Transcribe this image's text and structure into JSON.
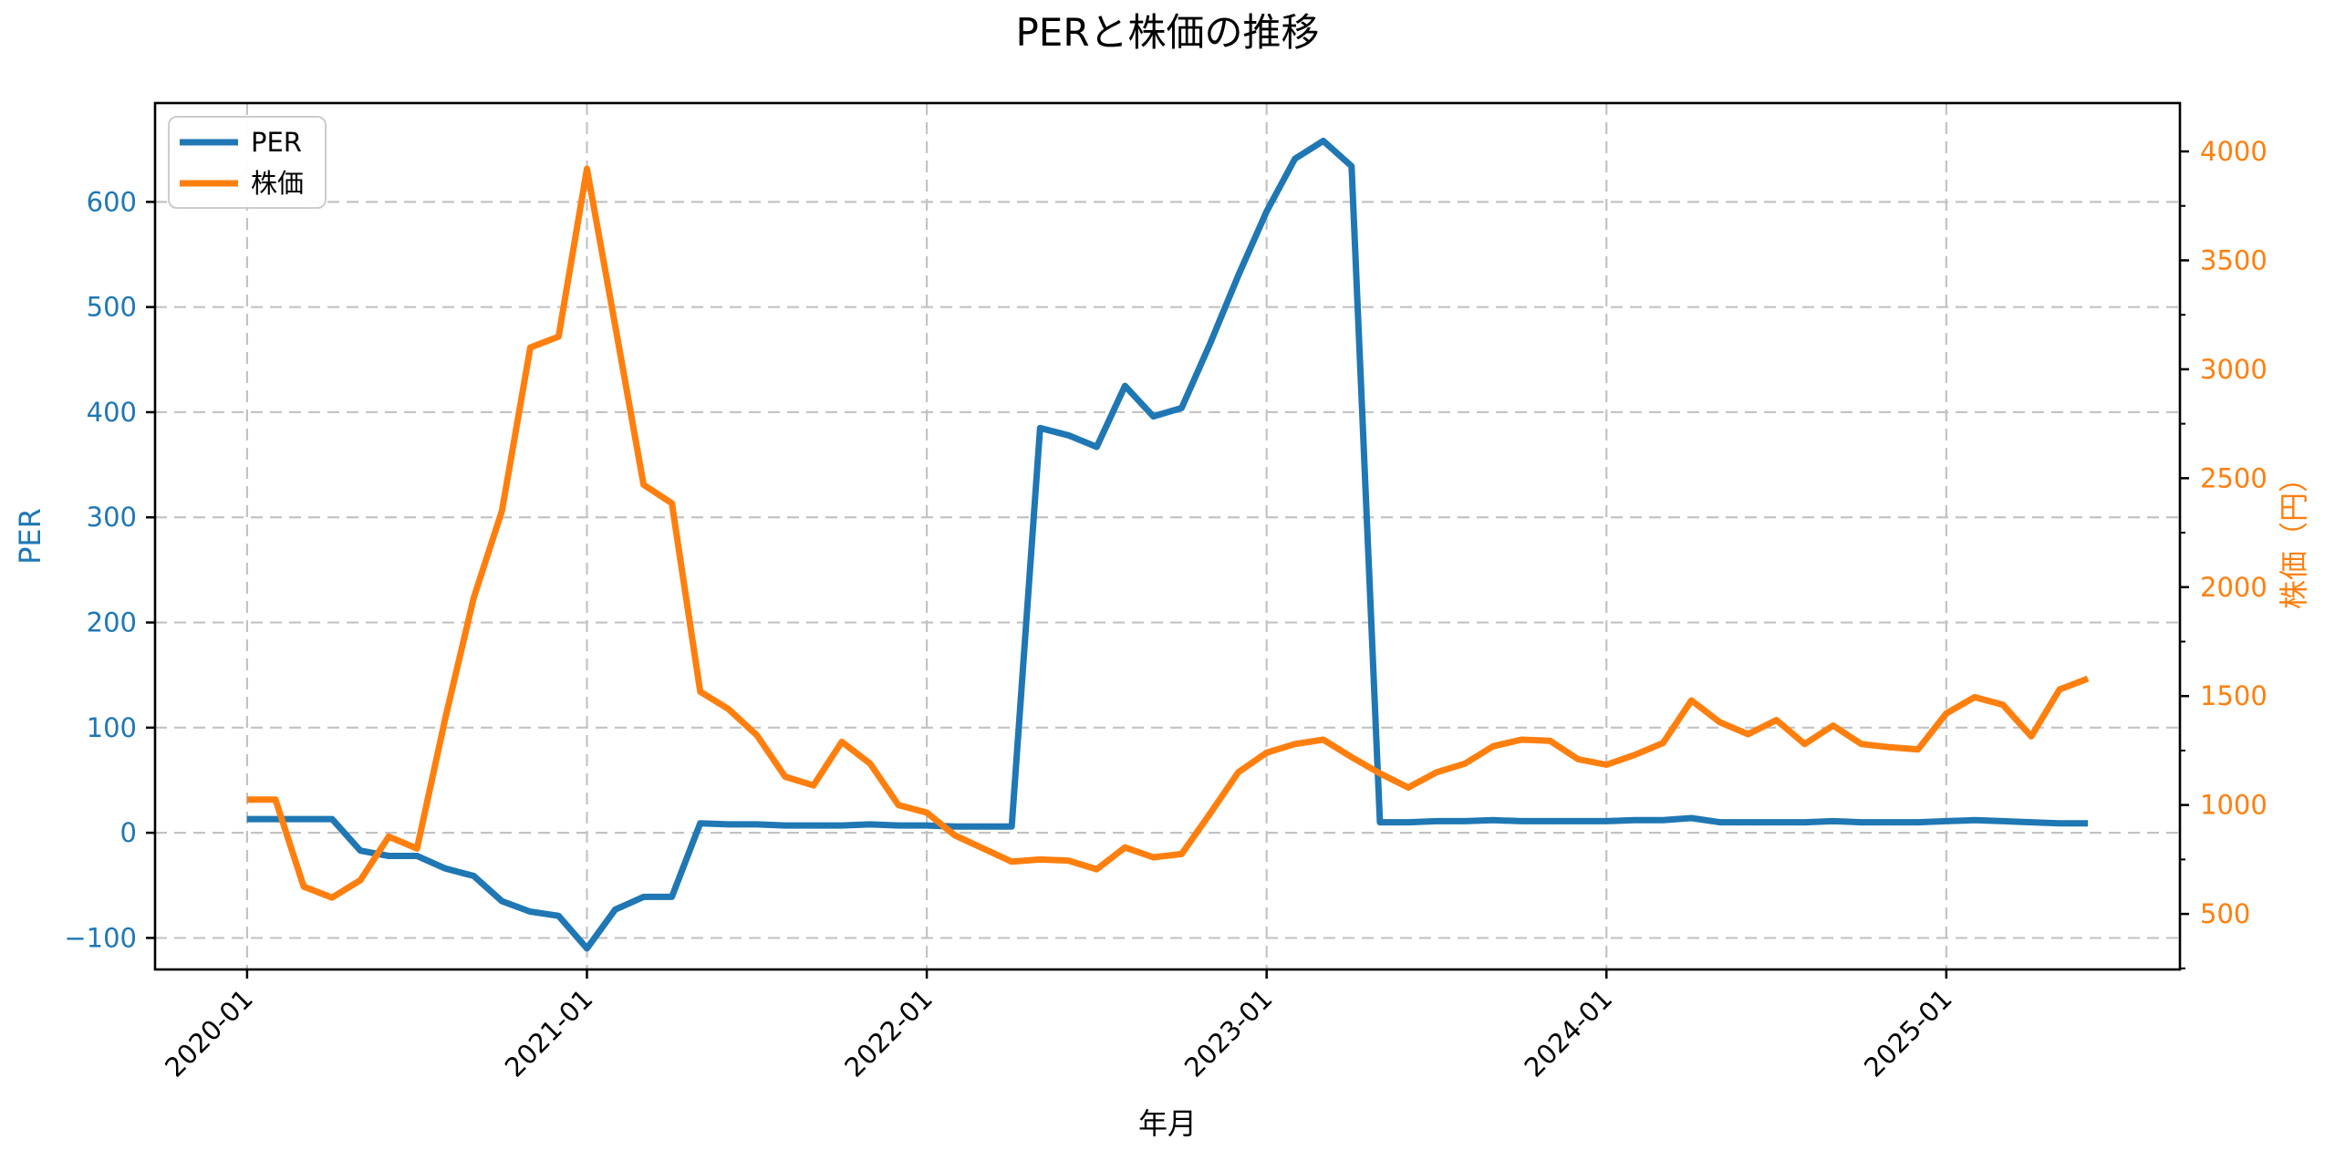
{
  "chart_data": {
    "type": "line",
    "title": "PERと株価の推移",
    "xlabel": "年月",
    "ylabel_left": "PER",
    "ylabel_right": "株価（円）",
    "legend": {
      "position": "upper left",
      "entries": [
        "PER",
        "株価"
      ]
    },
    "grid": {
      "horizontal": "left-axis-ticks",
      "vertical": "x-ticks",
      "style": "dashed",
      "color": "#c3c3c3"
    },
    "x": [
      "2020-01",
      "2020-02",
      "2020-03",
      "2020-04",
      "2020-05",
      "2020-06",
      "2020-07",
      "2020-08",
      "2020-09",
      "2020-10",
      "2020-11",
      "2020-12",
      "2021-01",
      "2021-02",
      "2021-03",
      "2021-04",
      "2021-05",
      "2021-06",
      "2021-07",
      "2021-08",
      "2021-09",
      "2021-10",
      "2021-11",
      "2021-12",
      "2022-01",
      "2022-02",
      "2022-03",
      "2022-04",
      "2022-05",
      "2022-06",
      "2022-07",
      "2022-08",
      "2022-09",
      "2022-10",
      "2022-11",
      "2022-12",
      "2023-01",
      "2023-02",
      "2023-03",
      "2023-04",
      "2023-05",
      "2023-06",
      "2023-07",
      "2023-08",
      "2023-09",
      "2023-10",
      "2023-11",
      "2023-12",
      "2024-01",
      "2024-02",
      "2024-03",
      "2024-04",
      "2024-05",
      "2024-06",
      "2024-07",
      "2024-08",
      "2024-09",
      "2024-10",
      "2024-11",
      "2024-12",
      "2025-01",
      "2025-02",
      "2025-03",
      "2025-04",
      "2025-05",
      "2025-06"
    ],
    "series": [
      {
        "name": "PER",
        "axis": "left",
        "color": "#1f77b4",
        "values": [
          13,
          13,
          13,
          13,
          -17,
          -22,
          -22,
          -34,
          -41,
          -65,
          -75,
          -79,
          -110,
          -73,
          -61,
          -61,
          9,
          8,
          8,
          7,
          7,
          7,
          8,
          7,
          7,
          6,
          6,
          6,
          385,
          378,
          367,
          425,
          396,
          404,
          465,
          530,
          591,
          641,
          658,
          634,
          10,
          10,
          11,
          11,
          12,
          11,
          11,
          11,
          11,
          12,
          12,
          14,
          10,
          10,
          10,
          10,
          11,
          10,
          10,
          10,
          11,
          12,
          11,
          10,
          9,
          9
        ]
      },
      {
        "name": "株価",
        "axis": "right",
        "color": "#ff7f0e",
        "values": [
          1025,
          1025,
          625,
          575,
          655,
          855,
          800,
          1400,
          1950,
          2350,
          3100,
          3150,
          3920,
          3200,
          2470,
          2385,
          1520,
          1440,
          1320,
          1130,
          1090,
          1290,
          1190,
          1000,
          965,
          860,
          800,
          740,
          750,
          745,
          705,
          805,
          760,
          775,
          960,
          1150,
          1240,
          1280,
          1300,
          1220,
          1145,
          1080,
          1150,
          1190,
          1270,
          1300,
          1295,
          1210,
          1185,
          1230,
          1285,
          1480,
          1380,
          1325,
          1390,
          1280,
          1365,
          1280,
          1265,
          1255,
          1420,
          1495,
          1460,
          1315,
          1530,
          1580
        ]
      }
    ],
    "x_tick_positions": [
      0,
      12,
      24,
      36,
      48,
      60
    ],
    "x_tick_labels": [
      "2020-01",
      "2021-01",
      "2022-01",
      "2023-01",
      "2024-01",
      "2025-01"
    ],
    "x_range": [
      -3.25,
      68.25
    ],
    "y_left": {
      "ticks": [
        -100,
        0,
        100,
        200,
        300,
        400,
        500,
        600
      ],
      "range": [
        -130,
        694
      ]
    },
    "y_right": {
      "ticks": [
        500,
        1000,
        1500,
        2000,
        2500,
        3000,
        3500,
        4000
      ],
      "minor_tick_step": 250,
      "range": [
        245,
        4222
      ]
    }
  }
}
